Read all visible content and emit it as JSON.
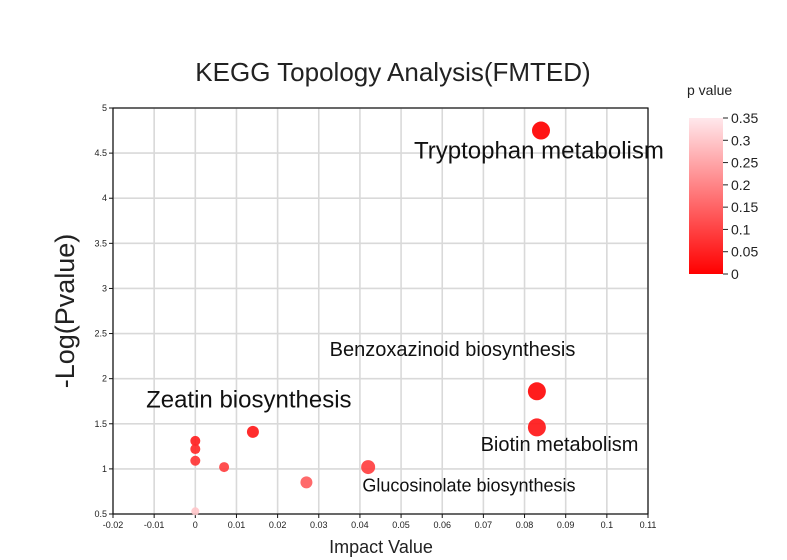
{
  "chart_data": {
    "type": "scatter",
    "title": "KEGG Topology Analysis(FMTED)",
    "xlabel": "Impact Value",
    "ylabel": "-Log(Pvalue)",
    "xlim": [
      -0.02,
      0.11
    ],
    "ylim": [
      0.5,
      5
    ],
    "x_ticks": [
      "-0.02",
      "-0.01",
      "0",
      "0.01",
      "0.02",
      "0.03",
      "0.04",
      "0.05",
      "0.06",
      "0.07",
      "0.08",
      "0.09",
      "0.1",
      "0.11"
    ],
    "y_ticks": [
      "0.5",
      "1",
      "1.5",
      "2",
      "2.5",
      "3",
      "3.5",
      "4",
      "4.5",
      "5"
    ],
    "grid": true,
    "points": [
      {
        "x": 0.084,
        "y": 4.75,
        "p": 2e-05,
        "size": 9
      },
      {
        "x": 0.083,
        "y": 1.86,
        "p": 0.014,
        "size": 9
      },
      {
        "x": 0.083,
        "y": 1.46,
        "p": 0.035,
        "size": 9
      },
      {
        "x": 0.042,
        "y": 1.02,
        "p": 0.095,
        "size": 7
      },
      {
        "x": 0.014,
        "y": 1.41,
        "p": 0.039,
        "size": 6
      },
      {
        "x": 0.0,
        "y": 1.31,
        "p": 0.049,
        "size": 5
      },
      {
        "x": 0.0,
        "y": 1.22,
        "p": 0.06,
        "size": 5
      },
      {
        "x": 0.0,
        "y": 1.09,
        "p": 0.08,
        "size": 5
      },
      {
        "x": 0.007,
        "y": 1.02,
        "p": 0.095,
        "size": 5
      },
      {
        "x": 0.027,
        "y": 0.85,
        "p": 0.14,
        "size": 6
      },
      {
        "x": 0.0,
        "y": 0.53,
        "p": 0.3,
        "size": 4
      }
    ],
    "annotations": [
      {
        "text": "Tryptophan metabolism",
        "x": 0.0835,
        "y": 4.44,
        "color": "#d40000",
        "size": "large"
      },
      {
        "text": "Benzoxazinoid biosynthesis",
        "x": 0.0625,
        "y": 2.25,
        "color": "#111111",
        "size": "medium"
      },
      {
        "text": "Zeatin biosynthesis",
        "x": 0.013,
        "y": 1.68,
        "color": "#111111",
        "size": "large"
      },
      {
        "text": "Biotin metabolism",
        "x": 0.0885,
        "y": 1.2,
        "color": "#111111",
        "size": "medium"
      },
      {
        "text": "Glucosinolate biosynthesis",
        "x": 0.0665,
        "y": 0.75,
        "color": "#111111",
        "size": "small"
      }
    ],
    "legend": {
      "title": "p value",
      "ticks": [
        "0.35",
        "0.3",
        "0.25",
        "0.2",
        "0.15",
        "0.1",
        "0.05",
        "0"
      ],
      "min": 0,
      "max": 0.35,
      "color_low": "#ff0000",
      "color_high": "#ffe8ec",
      "placement": "right"
    }
  }
}
